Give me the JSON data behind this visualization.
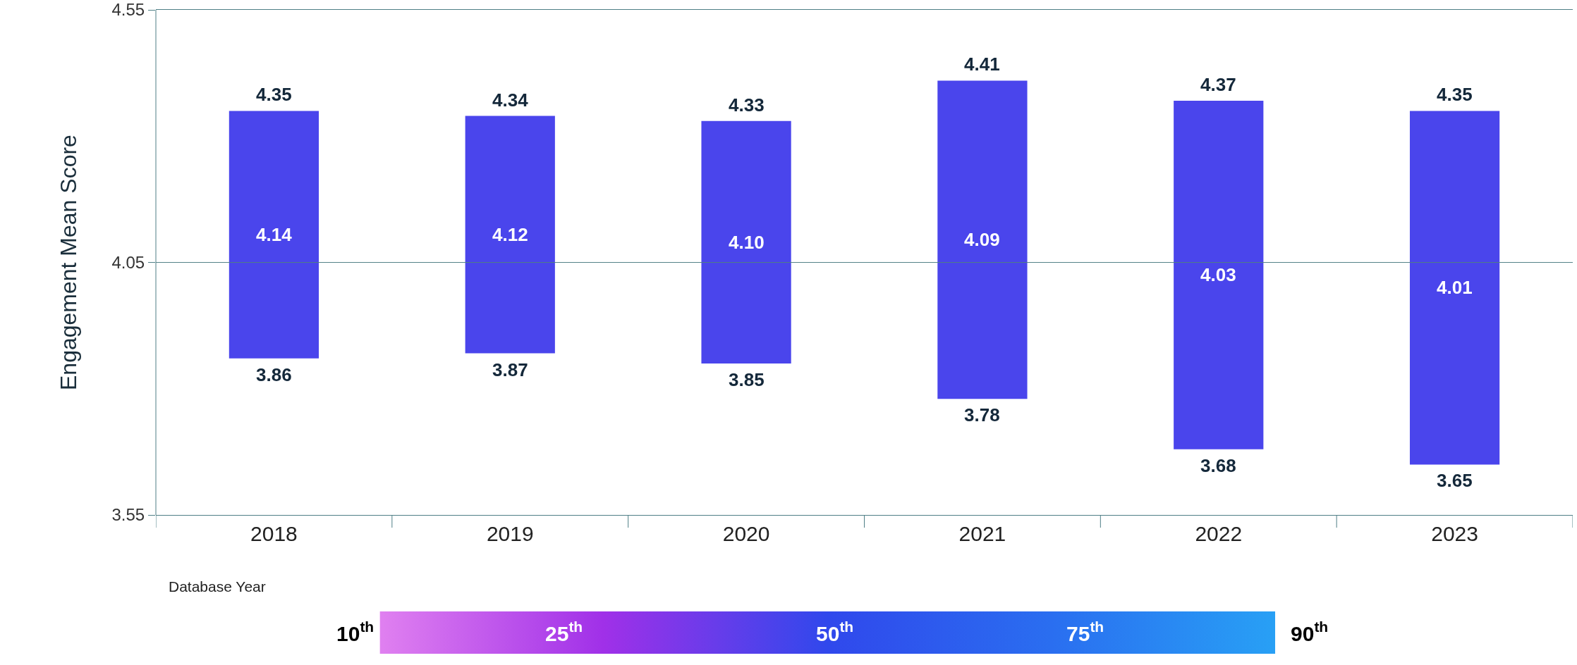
{
  "chart_data": {
    "type": "bar",
    "xlabel": "Database Year",
    "ylabel": "Engagement Mean Score",
    "categories": [
      "2018",
      "2019",
      "2020",
      "2021",
      "2022",
      "2023"
    ],
    "base": [
      3.86,
      3.87,
      3.85,
      3.78,
      3.68,
      3.65
    ],
    "values": [
      0.49,
      0.47,
      0.48,
      0.63,
      0.69,
      0.7
    ],
    "color": "#4a45ec",
    "ylim": [
      3.55,
      4.55
    ],
    "yticks": [
      3.55,
      4.05,
      4.55
    ],
    "ref_lines": [
      {
        "axis": "y",
        "value": 4.05,
        "color": "#4f7f86"
      }
    ],
    "annotations": [
      {
        "text": "4.35",
        "x": "2018",
        "y": 4.35
      },
      "4.14",
      {
        "text": "3.86",
        "x": "2018",
        "y": 3.86
      },
      {
        "text": "4.34",
        "x": "2019",
        "y": 4.34
      },
      "4.12",
      {
        "text": "3.87",
        "x": "2019",
        "y": 3.87
      },
      {
        "text": "4.33",
        "x": "2020",
        "y": 4.33
      },
      "4.10",
      {
        "text": "3.85",
        "x": "2020",
        "y": 3.85
      },
      {
        "text": "4.41",
        "x": "2021",
        "y": 4.41
      },
      "4.09",
      {
        "text": "3.78",
        "x": "2021",
        "y": 3.78
      },
      {
        "text": "4.37",
        "x": "2022",
        "y": 4.37
      },
      "4.03",
      {
        "text": "3.68",
        "x": "2022",
        "y": 3.68
      },
      {
        "text": "4.35",
        "x": "2023",
        "y": 4.35
      },
      "4.01",
      {
        "text": "3.65",
        "x": "2023",
        "y": 3.65
      },
      "10$^{th}$",
      "25$^{th}$",
      "50$^{th}$",
      "75$^{th}$",
      "90$^{th}$"
    ]
  }
}
